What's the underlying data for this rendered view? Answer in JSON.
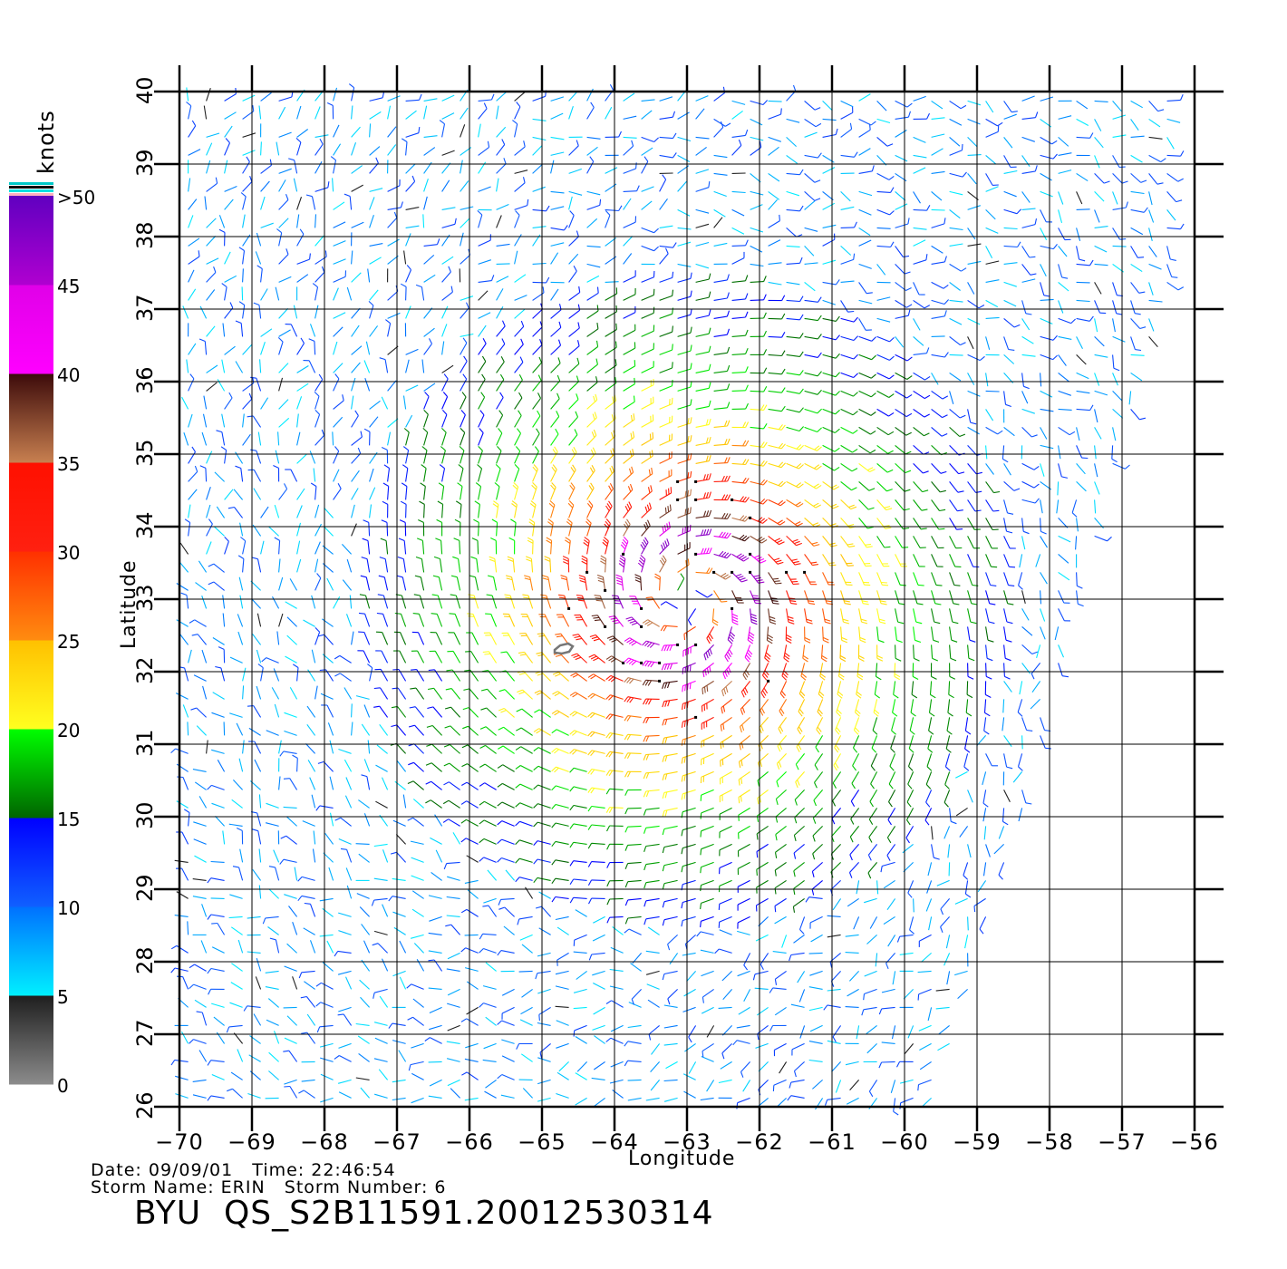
{
  "chart_data": {
    "type": "wind-barb-map",
    "xlabel": "Longitude",
    "ylabel": "Latitude",
    "xlim": [
      -70,
      -56
    ],
    "ylim": [
      26,
      40
    ],
    "x_ticks": [
      "−70",
      "−69",
      "−68",
      "−67",
      "−66",
      "−65",
      "−64",
      "−63",
      "−62",
      "−61",
      "−60",
      "−59",
      "−58",
      "−57",
      "−56"
    ],
    "y_ticks": [
      "26",
      "27",
      "28",
      "29",
      "30",
      "31",
      "32",
      "33",
      "34",
      "35",
      "36",
      "37",
      "38",
      "39",
      "40"
    ],
    "grid": true,
    "storm_center": {
      "lon": -63.0,
      "lat": 33.0
    },
    "land_contour": {
      "name": "Bermuda",
      "lon": -64.75,
      "lat": 32.3
    },
    "colorbar": {
      "title": "knots",
      "ticks": [
        "0",
        "5",
        "10",
        "15",
        "20",
        "25",
        "30",
        "35",
        "40",
        "45",
        ">50"
      ],
      "bands": [
        {
          "range": [
            0,
            5
          ],
          "colors": [
            "#8c8c8c",
            "#1e1e1e"
          ]
        },
        {
          "range": [
            5,
            10
          ],
          "colors": [
            "#00f0ff",
            "#0070ff"
          ]
        },
        {
          "range": [
            10,
            15
          ],
          "colors": [
            "#1060ff",
            "#0000ff"
          ]
        },
        {
          "range": [
            15,
            20
          ],
          "colors": [
            "#006400",
            "#00ff00"
          ]
        },
        {
          "range": [
            20,
            25
          ],
          "colors": [
            "#ffff20",
            "#ffc000"
          ]
        },
        {
          "range": [
            25,
            30
          ],
          "colors": [
            "#ff8c10",
            "#ff3000"
          ]
        },
        {
          "range": [
            30,
            35
          ],
          "colors": [
            "#ff2010",
            "#ff1000"
          ]
        },
        {
          "range": [
            35,
            40
          ],
          "colors": [
            "#c88050",
            "#3c0a0a"
          ]
        },
        {
          "range": [
            40,
            45
          ],
          "colors": [
            "#ff00ff",
            "#e000e8"
          ]
        },
        {
          "range": [
            45,
            50
          ],
          "colors": [
            "#b000d0",
            "#6000c0"
          ]
        }
      ]
    },
    "wind_field": {
      "model": "cyclonic vortex",
      "max_speed_knots": 50,
      "radius_max_wind_deg": 0.8,
      "background_knots": 8
    }
  },
  "meta": {
    "date_line": "Date: 09/09/01   Time: 22:46:54",
    "storm_line": "Storm Name: ERIN   Storm Number: 6",
    "product": "BYU  QS_S2B11591.20012530314"
  }
}
